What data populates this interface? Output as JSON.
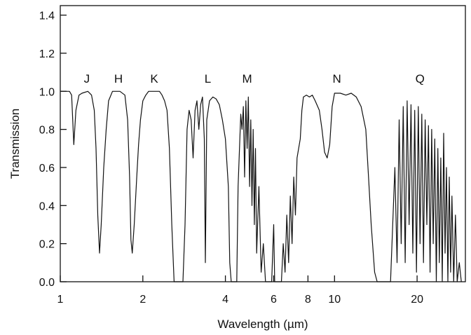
{
  "chart_data": {
    "type": "line",
    "xlabel": "Wavelength  (µm)",
    "ylabel": "Transmission",
    "xscale": "log",
    "xlim": [
      1,
      30
    ],
    "ylim": [
      0.0,
      1.45
    ],
    "grid": false,
    "legend": "none",
    "x_ticks": [
      {
        "value": 1,
        "label": "1"
      },
      {
        "value": 2,
        "label": "2"
      },
      {
        "value": 4,
        "label": "4"
      },
      {
        "value": 6,
        "label": "6"
      },
      {
        "value": 8,
        "label": "8"
      },
      {
        "value": 10,
        "label": "10"
      },
      {
        "value": 20,
        "label": "20"
      }
    ],
    "y_ticks": [
      {
        "value": 0.0,
        "label": "0.0"
      },
      {
        "value": 0.2,
        "label": "0.2"
      },
      {
        "value": 0.4,
        "label": "0.4"
      },
      {
        "value": 0.6,
        "label": "0.6"
      },
      {
        "value": 0.8,
        "label": "0.8"
      },
      {
        "value": 1.0,
        "label": "1.0"
      },
      {
        "value": 1.2,
        "label": "1.2"
      },
      {
        "value": 1.4,
        "label": "1.4"
      }
    ],
    "bands": [
      {
        "label": "J",
        "x": 1.25
      },
      {
        "label": "H",
        "x": 1.63
      },
      {
        "label": "K",
        "x": 2.2
      },
      {
        "label": "L",
        "x": 3.45
      },
      {
        "label": "M",
        "x": 4.8
      },
      {
        "label": "N",
        "x": 10.2
      },
      {
        "label": "Q",
        "x": 20.5
      }
    ],
    "series": [
      {
        "points": [
          [
            1.0,
            1.0
          ],
          [
            1.08,
            1.0
          ],
          [
            1.1,
            0.98
          ],
          [
            1.12,
            0.72
          ],
          [
            1.14,
            0.9
          ],
          [
            1.17,
            0.98
          ],
          [
            1.2,
            0.99
          ],
          [
            1.26,
            1.0
          ],
          [
            1.3,
            0.98
          ],
          [
            1.33,
            0.9
          ],
          [
            1.35,
            0.7
          ],
          [
            1.37,
            0.35
          ],
          [
            1.39,
            0.15
          ],
          [
            1.41,
            0.3
          ],
          [
            1.44,
            0.6
          ],
          [
            1.47,
            0.8
          ],
          [
            1.5,
            0.95
          ],
          [
            1.55,
            1.0
          ],
          [
            1.65,
            1.0
          ],
          [
            1.72,
            0.98
          ],
          [
            1.76,
            0.85
          ],
          [
            1.79,
            0.55
          ],
          [
            1.81,
            0.22
          ],
          [
            1.83,
            0.15
          ],
          [
            1.86,
            0.3
          ],
          [
            1.9,
            0.55
          ],
          [
            1.93,
            0.72
          ],
          [
            1.96,
            0.85
          ],
          [
            2.0,
            0.95
          ],
          [
            2.05,
            0.98
          ],
          [
            2.1,
            1.0
          ],
          [
            2.3,
            1.0
          ],
          [
            2.35,
            0.98
          ],
          [
            2.4,
            0.95
          ],
          [
            2.45,
            0.9
          ],
          [
            2.5,
            0.7
          ],
          [
            2.55,
            0.3
          ],
          [
            2.6,
            0.0
          ],
          [
            2.8,
            0.0
          ],
          [
            2.85,
            0.3
          ],
          [
            2.9,
            0.8
          ],
          [
            2.95,
            0.9
          ],
          [
            3.0,
            0.85
          ],
          [
            3.05,
            0.65
          ],
          [
            3.1,
            0.9
          ],
          [
            3.15,
            0.95
          ],
          [
            3.2,
            0.8
          ],
          [
            3.25,
            0.93
          ],
          [
            3.3,
            0.97
          ],
          [
            3.35,
            0.75
          ],
          [
            3.38,
            0.1
          ],
          [
            3.42,
            0.85
          ],
          [
            3.5,
            0.95
          ],
          [
            3.6,
            0.97
          ],
          [
            3.7,
            0.96
          ],
          [
            3.8,
            0.93
          ],
          [
            3.9,
            0.85
          ],
          [
            4.0,
            0.75
          ],
          [
            4.1,
            0.5
          ],
          [
            4.15,
            0.1
          ],
          [
            4.2,
            0.0
          ],
          [
            4.4,
            0.0
          ],
          [
            4.45,
            0.5
          ],
          [
            4.55,
            0.88
          ],
          [
            4.6,
            0.8
          ],
          [
            4.65,
            0.92
          ],
          [
            4.7,
            0.55
          ],
          [
            4.75,
            0.95
          ],
          [
            4.8,
            0.7
          ],
          [
            4.85,
            0.97
          ],
          [
            4.9,
            0.5
          ],
          [
            4.95,
            0.85
          ],
          [
            5.0,
            0.4
          ],
          [
            5.05,
            0.8
          ],
          [
            5.1,
            0.3
          ],
          [
            5.15,
            0.7
          ],
          [
            5.2,
            0.15
          ],
          [
            5.3,
            0.5
          ],
          [
            5.4,
            0.05
          ],
          [
            5.5,
            0.2
          ],
          [
            5.6,
            0.0
          ],
          [
            5.9,
            0.0
          ],
          [
            6.0,
            0.3
          ],
          [
            6.05,
            0.0
          ],
          [
            6.4,
            0.0
          ],
          [
            6.5,
            0.2
          ],
          [
            6.6,
            0.05
          ],
          [
            6.7,
            0.35
          ],
          [
            6.8,
            0.1
          ],
          [
            6.9,
            0.45
          ],
          [
            7.0,
            0.2
          ],
          [
            7.1,
            0.55
          ],
          [
            7.2,
            0.35
          ],
          [
            7.3,
            0.65
          ],
          [
            7.5,
            0.75
          ],
          [
            7.6,
            0.9
          ],
          [
            7.7,
            0.97
          ],
          [
            7.9,
            0.98
          ],
          [
            8.1,
            0.97
          ],
          [
            8.3,
            0.98
          ],
          [
            8.5,
            0.95
          ],
          [
            8.8,
            0.9
          ],
          [
            9.0,
            0.8
          ],
          [
            9.2,
            0.68
          ],
          [
            9.4,
            0.65
          ],
          [
            9.6,
            0.72
          ],
          [
            9.8,
            0.92
          ],
          [
            10.0,
            0.99
          ],
          [
            10.5,
            0.99
          ],
          [
            11.0,
            0.98
          ],
          [
            11.5,
            0.99
          ],
          [
            12.0,
            0.97
          ],
          [
            12.5,
            0.92
          ],
          [
            13.0,
            0.8
          ],
          [
            13.3,
            0.55
          ],
          [
            13.6,
            0.3
          ],
          [
            14.0,
            0.05
          ],
          [
            14.3,
            0.0
          ],
          [
            16.0,
            0.0
          ],
          [
            16.3,
            0.3
          ],
          [
            16.6,
            0.6
          ],
          [
            16.9,
            0.1
          ],
          [
            17.2,
            0.85
          ],
          [
            17.5,
            0.2
          ],
          [
            17.8,
            0.92
          ],
          [
            18.1,
            0.1
          ],
          [
            18.4,
            0.95
          ],
          [
            18.7,
            0.3
          ],
          [
            19.0,
            0.93
          ],
          [
            19.3,
            0.15
          ],
          [
            19.6,
            0.9
          ],
          [
            19.9,
            0.05
          ],
          [
            20.2,
            0.92
          ],
          [
            20.5,
            0.2
          ],
          [
            20.8,
            0.88
          ],
          [
            21.1,
            0.1
          ],
          [
            21.4,
            0.85
          ],
          [
            21.7,
            0.3
          ],
          [
            22.0,
            0.82
          ],
          [
            22.3,
            0.05
          ],
          [
            22.6,
            0.8
          ],
          [
            22.9,
            0.2
          ],
          [
            23.2,
            0.75
          ],
          [
            23.5,
            0.0
          ],
          [
            23.8,
            0.7
          ],
          [
            24.1,
            0.1
          ],
          [
            24.4,
            0.65
          ],
          [
            24.7,
            0.0
          ],
          [
            25.0,
            0.78
          ],
          [
            25.3,
            0.15
          ],
          [
            25.6,
            0.6
          ],
          [
            25.9,
            0.0
          ],
          [
            26.2,
            0.55
          ],
          [
            26.5,
            0.05
          ],
          [
            26.8,
            0.45
          ],
          [
            27.2,
            0.0
          ],
          [
            27.6,
            0.35
          ],
          [
            28.0,
            0.0
          ],
          [
            28.5,
            0.1
          ],
          [
            29.0,
            0.0
          ]
        ]
      }
    ]
  }
}
